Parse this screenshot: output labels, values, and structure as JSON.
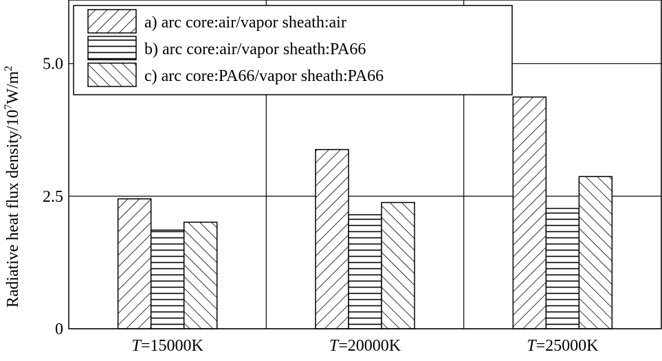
{
  "chart_data": {
    "type": "bar",
    "title": "",
    "xlabel": "",
    "ylabel": "Radiative heat flux density/10",
    "ylabel_exp1": "7",
    "ylabel_unit": "W/m",
    "ylabel_exp2": "2",
    "categories": [
      {
        "italic": "T",
        "rest": "=15000K"
      },
      {
        "italic": "T",
        "rest": "=20000K"
      },
      {
        "italic": "T",
        "rest": "=25000K"
      }
    ],
    "yticks": [
      {
        "value": 0,
        "label": "0"
      },
      {
        "value": 2.5,
        "label": "2.5"
      },
      {
        "value": 5.0,
        "label": "5.0"
      }
    ],
    "ylim": [
      0,
      6.2
    ],
    "grid": true,
    "legend_position": "top-left",
    "series": [
      {
        "name": "a) arc core:air/vapor sheath:air",
        "pattern": "backslash-hatch",
        "values": [
          2.45,
          3.38,
          4.37
        ]
      },
      {
        "name": "b) arc core:air/vapor sheath:PA66",
        "pattern": "horizontal-hatch",
        "values": [
          1.86,
          2.15,
          2.27
        ]
      },
      {
        "name": "c) arc core:PA66/vapor sheath:PA66",
        "pattern": "slash-hatch",
        "values": [
          2.01,
          2.38,
          2.87
        ]
      }
    ]
  }
}
